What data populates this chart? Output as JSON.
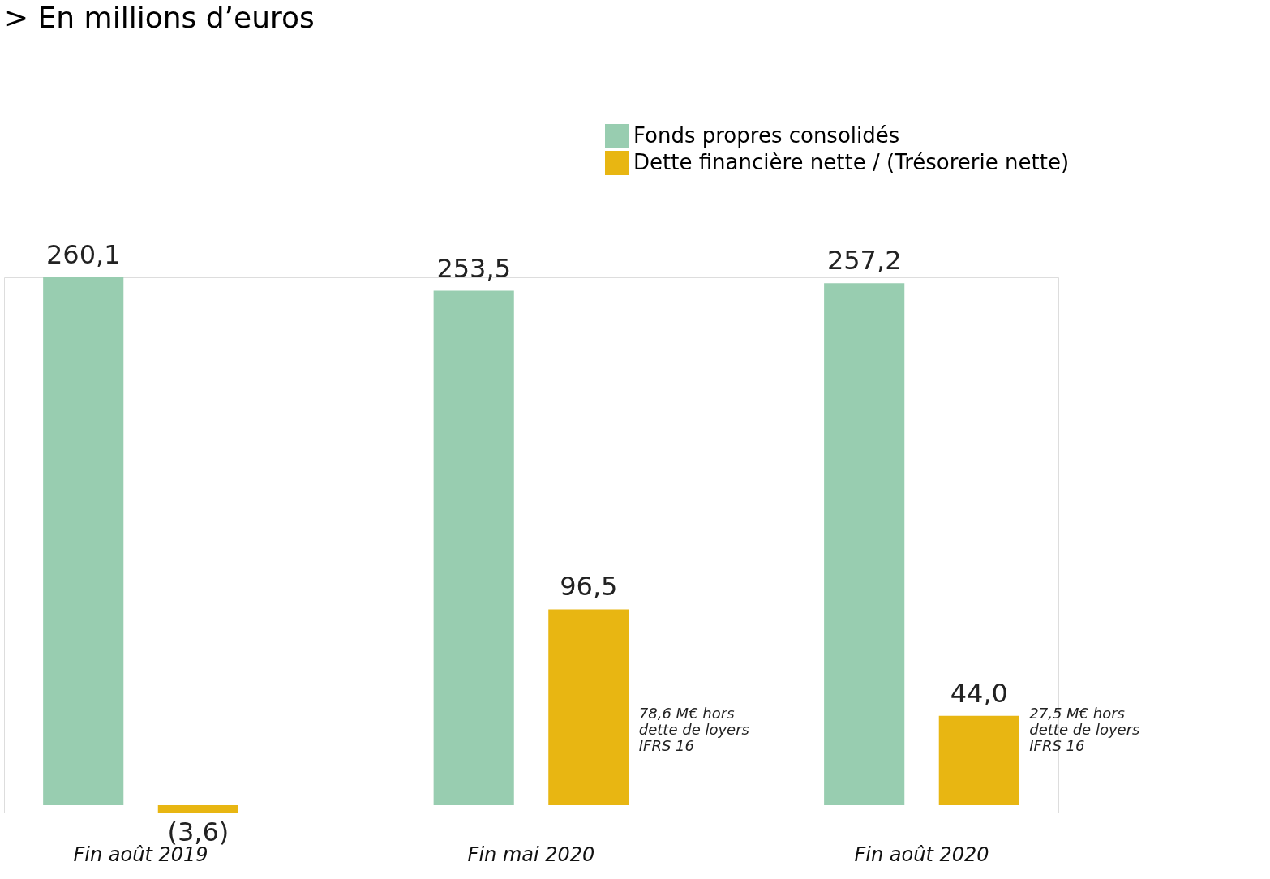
{
  "chart_data": {
    "type": "bar",
    "title": "> En millions d’euros",
    "categories": [
      "Fin août 2019",
      "Fin mai 2020",
      "Fin août 2020"
    ],
    "series": [
      {
        "name": "Fonds propres consolidés",
        "color": "#98cdb0",
        "values": [
          260.1,
          253.5,
          257.2
        ],
        "value_labels": [
          "260,1",
          "253,5",
          "257,2"
        ]
      },
      {
        "name": "Dette financière nette / (Trésorerie nette)",
        "color": "#e8b612",
        "values": [
          -3.6,
          96.5,
          44.0
        ],
        "value_labels": [
          "(3,6)",
          "96,5",
          "44,0"
        ]
      }
    ],
    "annotations": [
      "78,6 M€ hors\ndette de loyers\nIFRS 16",
      "27,5 M€ hors\ndette de loyers\nIFRS 16"
    ],
    "legend": "top right",
    "tick_labels": "x",
    "grid": false
  }
}
